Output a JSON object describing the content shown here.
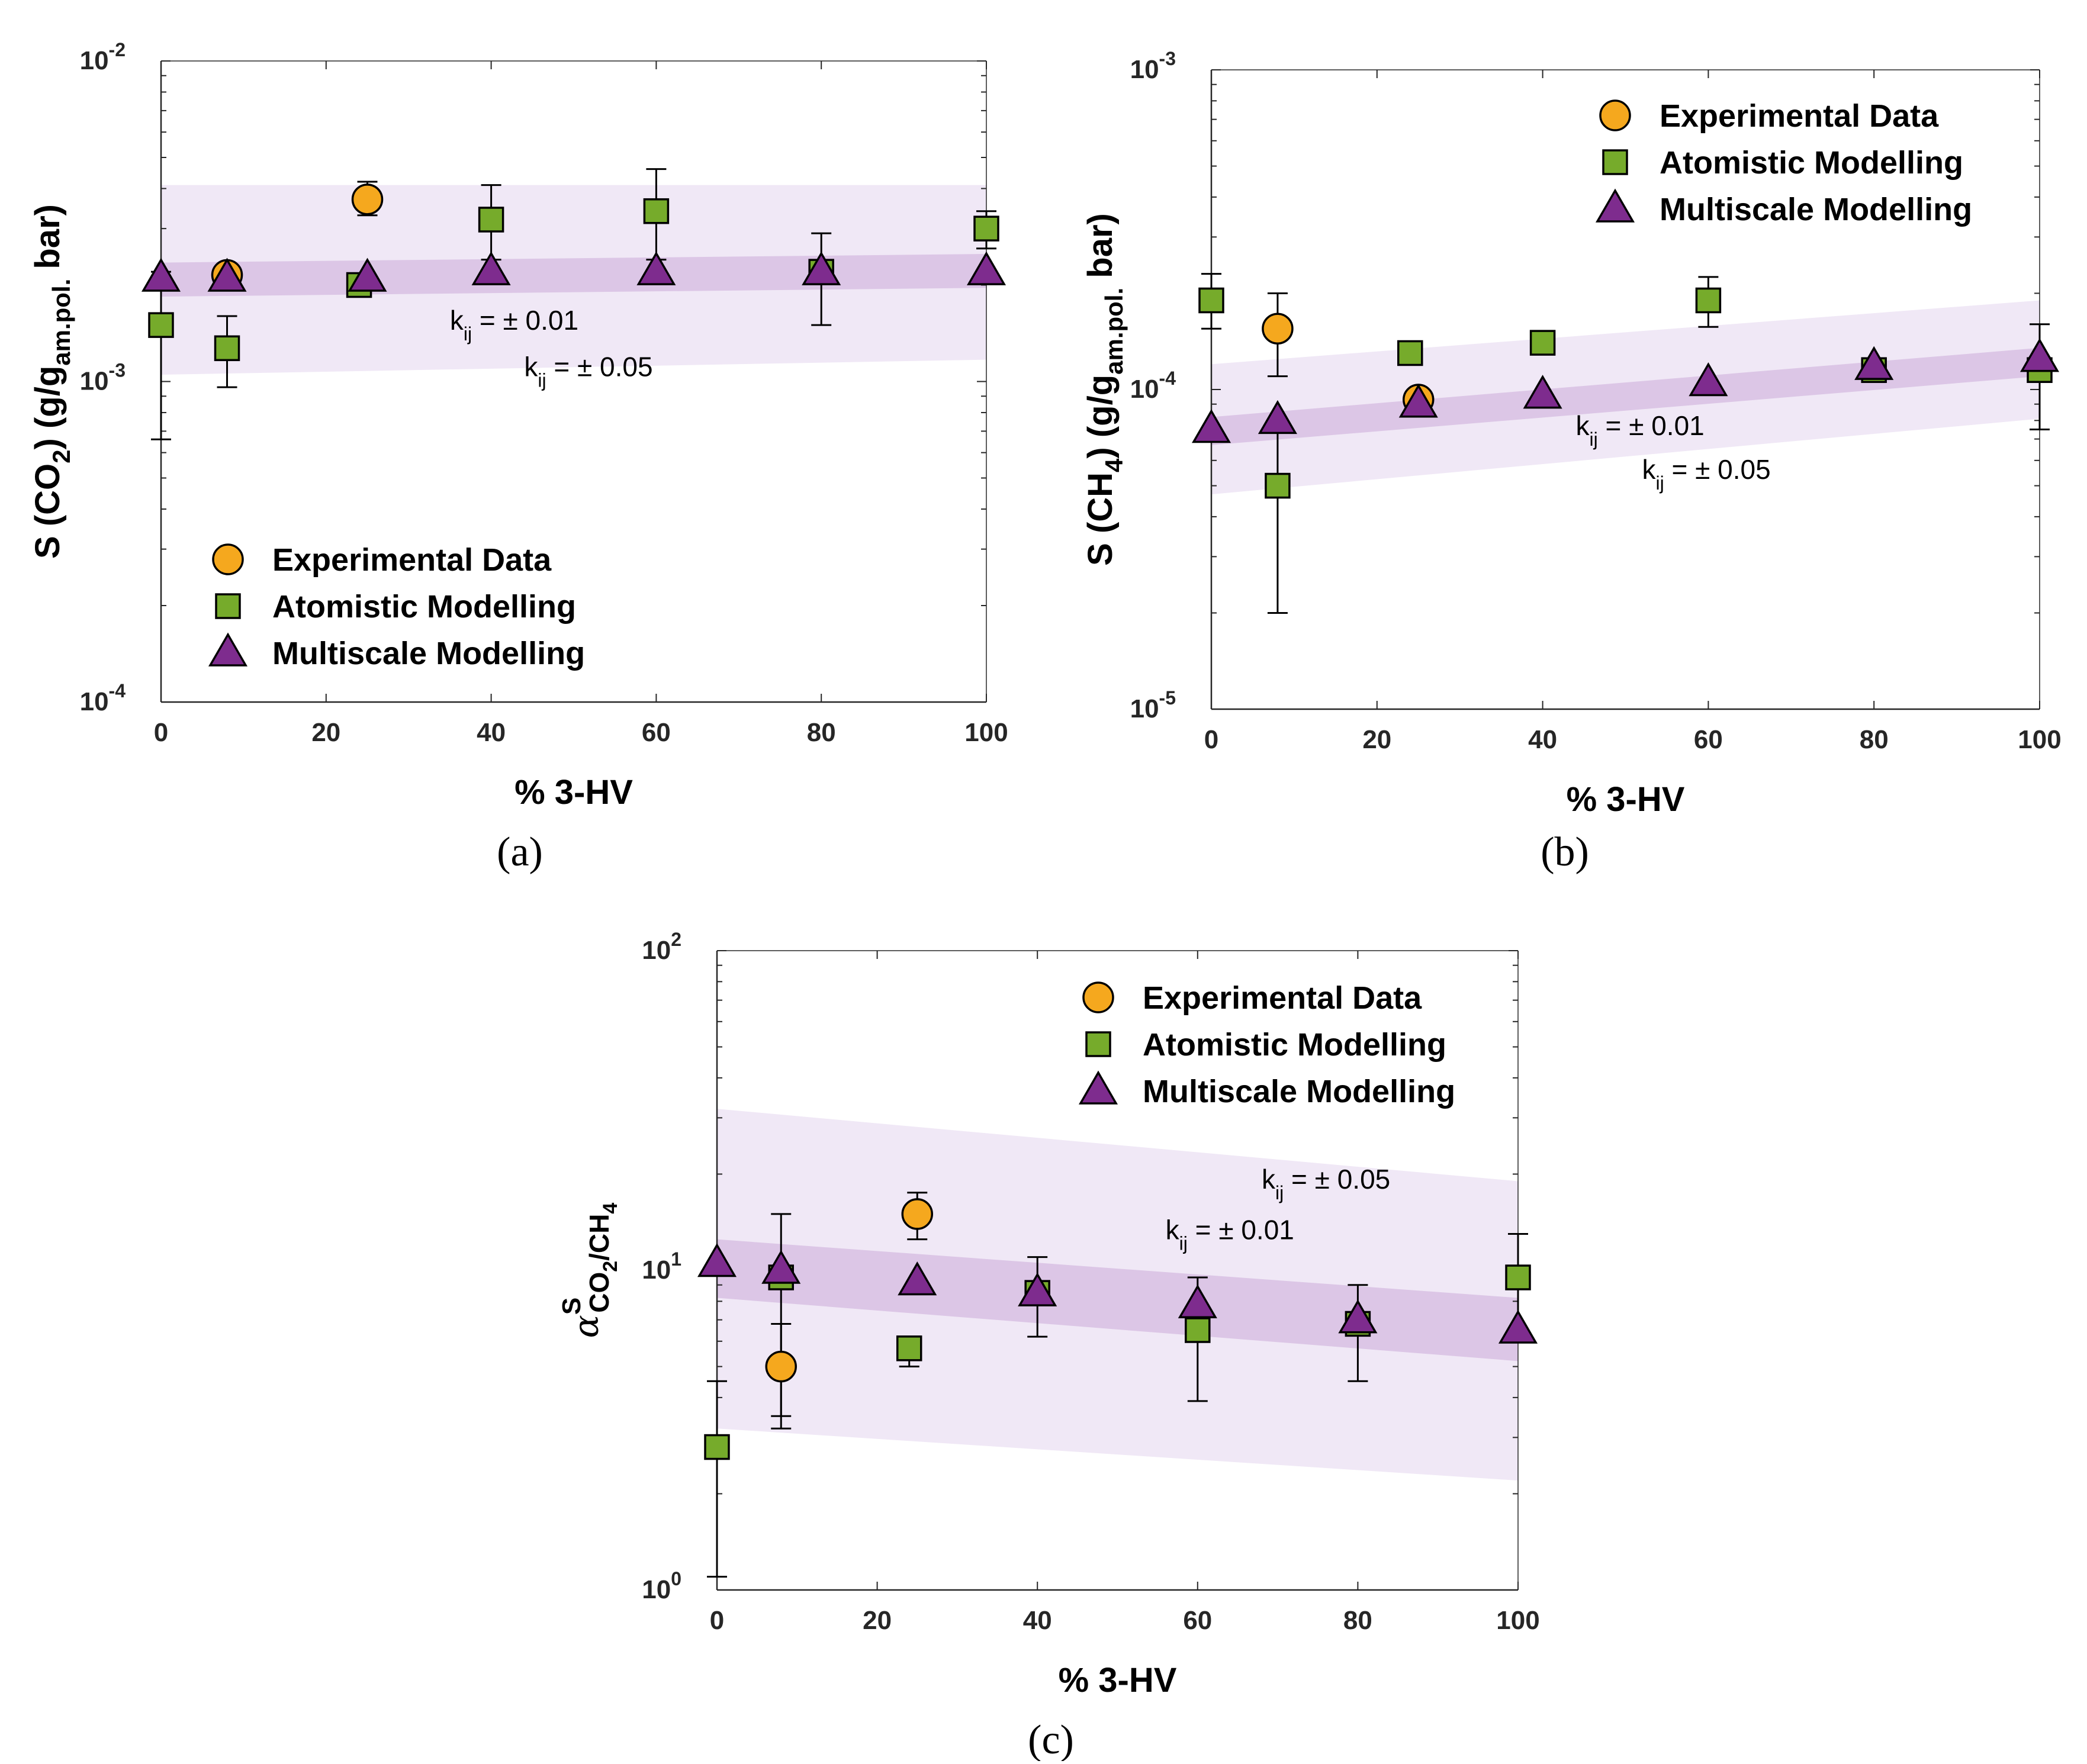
{
  "colors": {
    "experimental": "#f5a81e",
    "atomistic": "#76ab2b",
    "multiscale": "#7e2c8e",
    "band_inner": "#dcc6e6",
    "band_outer": "#f0e8f6"
  },
  "legend": {
    "experimental": "Experimental Data",
    "atomistic": "Atomistic Modelling",
    "multiscale": "Multiscale Modelling"
  },
  "chart_data": [
    {
      "type": "scatter",
      "panel_label": "(a)",
      "xlabel": "% 3-HV",
      "ylabel": "S (CO2) (g/gam.pol. bar)",
      "y_scale": "log",
      "xlim": [
        0,
        100
      ],
      "ylim": [
        0.0001,
        0.01
      ],
      "xticks": [
        0,
        20,
        40,
        60,
        80,
        100
      ],
      "yticks": [
        {
          "value": 0.0001,
          "base": "10",
          "exp": "-4"
        },
        {
          "value": 0.001,
          "base": "10",
          "exp": "-3"
        },
        {
          "value": 0.01,
          "base": "10",
          "exp": "-2"
        }
      ],
      "legend_position": "bottom-left",
      "annotations": [
        {
          "text": "k",
          "sub": "ij",
          "rest": " = ± 0.01",
          "x": 35,
          "y": 0.00145
        },
        {
          "text": "k",
          "sub": "ij",
          "rest": " = ± 0.05",
          "x": 44,
          "y": 0.00104
        }
      ],
      "bands": [
        {
          "name": "k_ij = ± 0.05",
          "x": [
            0,
            100
          ],
          "lower": [
            0.00105,
            0.00117
          ],
          "upper": [
            0.0041,
            0.0041
          ]
        },
        {
          "name": "k_ij = ± 0.01",
          "x": [
            0,
            100
          ],
          "lower": [
            0.00184,
            0.00196
          ],
          "upper": [
            0.00235,
            0.0025
          ]
        }
      ],
      "series": [
        {
          "name": "Experimental Data",
          "marker": "circle",
          "points": [
            {
              "x": 8,
              "y": 0.00215
            },
            {
              "x": 25,
              "y": 0.0037,
              "err": [
                0.0033,
                0.0042
              ]
            }
          ]
        },
        {
          "name": "Atomistic Modelling",
          "marker": "square",
          "points": [
            {
              "x": 0,
              "y": 0.0015,
              "err": [
                0.00066,
                0.0022
              ]
            },
            {
              "x": 8,
              "y": 0.00127,
              "err": [
                0.00096,
                0.0016
              ]
            },
            {
              "x": 24,
              "y": 0.002
            },
            {
              "x": 40,
              "y": 0.0032,
              "err": [
                0.0024,
                0.0041
              ]
            },
            {
              "x": 60,
              "y": 0.0034,
              "err": [
                0.0024,
                0.0046
              ]
            },
            {
              "x": 80,
              "y": 0.0022,
              "err": [
                0.0015,
                0.0029
              ]
            },
            {
              "x": 100,
              "y": 0.003,
              "err": [
                0.0026,
                0.0034
              ]
            }
          ]
        },
        {
          "name": "Multiscale Modelling",
          "marker": "triangle",
          "points": [
            {
              "x": 0,
              "y": 0.0021
            },
            {
              "x": 8,
              "y": 0.0021
            },
            {
              "x": 25,
              "y": 0.0021
            },
            {
              "x": 40,
              "y": 0.0022
            },
            {
              "x": 60,
              "y": 0.0022
            },
            {
              "x": 80,
              "y": 0.0022
            },
            {
              "x": 100,
              "y": 0.0022
            }
          ]
        }
      ]
    },
    {
      "type": "scatter",
      "panel_label": "(b)",
      "xlabel": "% 3-HV",
      "ylabel": "S (CH4) (g/gam.pol. bar)",
      "y_scale": "log",
      "xlim": [
        0,
        100
      ],
      "ylim": [
        1e-05,
        0.001
      ],
      "xticks": [
        0,
        20,
        40,
        60,
        80,
        100
      ],
      "yticks": [
        {
          "value": 1e-05,
          "base": "10",
          "exp": "-5"
        },
        {
          "value": 0.0001,
          "base": "10",
          "exp": "-4"
        },
        {
          "value": 0.001,
          "base": "10",
          "exp": "-3"
        }
      ],
      "legend_position": "top-right",
      "annotations": [
        {
          "text": "k",
          "sub": "ij",
          "rest": " = ± 0.01",
          "x": 44,
          "y": 7.2e-05
        },
        {
          "text": "k",
          "sub": "ij",
          "rest": " = ± 0.05",
          "x": 52,
          "y": 5.25e-05
        }
      ],
      "bands": [
        {
          "name": "k_ij = ± 0.05",
          "x": [
            0,
            100
          ],
          "lower": [
            4.7e-05,
            8.1e-05
          ],
          "upper": [
            0.00012,
            0.00019
          ]
        },
        {
          "name": "k_ij = ± 0.01",
          "x": [
            0,
            100
          ],
          "lower": [
            6.7e-05,
            0.00011
          ],
          "upper": [
            8.2e-05,
            0.000135
          ]
        }
      ],
      "series": [
        {
          "name": "Experimental Data",
          "marker": "circle",
          "points": [
            {
              "x": 8,
              "y": 0.000155,
              "err": [
                0.00011,
                0.0002
              ]
            },
            {
              "x": 25,
              "y": 9.3e-05,
              "err": [
                8.6e-05,
                0.0001
              ]
            }
          ]
        },
        {
          "name": "Atomistic Modelling",
          "marker": "square",
          "points": [
            {
              "x": 0,
              "y": 0.00019,
              "err": [
                0.000155,
                0.00023
              ]
            },
            {
              "x": 8,
              "y": 5e-05,
              "err": [
                2e-05,
                8e-05
              ]
            },
            {
              "x": 24,
              "y": 0.00013
            },
            {
              "x": 40,
              "y": 0.00014,
              "err": [
                0.00013,
                0.00015
              ]
            },
            {
              "x": 60,
              "y": 0.00019,
              "err": [
                0.000157,
                0.000225
              ]
            },
            {
              "x": 80,
              "y": 0.000115
            },
            {
              "x": 100,
              "y": 0.000115,
              "err": [
                7.5e-05,
                0.00016
              ]
            }
          ]
        },
        {
          "name": "Multiscale Modelling",
          "marker": "triangle",
          "points": [
            {
              "x": 0,
              "y": 7.5e-05
            },
            {
              "x": 8,
              "y": 8e-05
            },
            {
              "x": 25,
              "y": 9e-05
            },
            {
              "x": 40,
              "y": 9.6e-05
            },
            {
              "x": 60,
              "y": 0.000105
            },
            {
              "x": 80,
              "y": 0.000118
            },
            {
              "x": 100,
              "y": 0.000125
            }
          ]
        }
      ]
    },
    {
      "type": "scatter",
      "panel_label": "(c)",
      "xlabel": "% 3-HV",
      "ylabel": "αSCO2/CH4",
      "y_scale": "log",
      "xlim": [
        0,
        100
      ],
      "ylim": [
        1,
        100
      ],
      "xticks": [
        0,
        20,
        40,
        60,
        80,
        100
      ],
      "yticks": [
        {
          "value": 1,
          "base": "10",
          "exp": "0"
        },
        {
          "value": 10,
          "base": "10",
          "exp": "1"
        },
        {
          "value": 100,
          "base": "10",
          "exp": "2"
        }
      ],
      "legend_position": "top-right",
      "annotations": [
        {
          "text": "k",
          "sub": "ij",
          "rest": " = ± 0.05",
          "x": 68,
          "y": 18
        },
        {
          "text": "k",
          "sub": "ij",
          "rest": " = ± 0.01",
          "x": 56,
          "y": 12.5
        }
      ],
      "bands": [
        {
          "name": "k_ij = ± 0.05",
          "x": [
            0,
            100
          ],
          "lower": [
            3.2,
            2.2
          ],
          "upper": [
            32,
            19
          ]
        },
        {
          "name": "k_ij = ± 0.01",
          "x": [
            0,
            100
          ],
          "lower": [
            8.2,
            5.2
          ],
          "upper": [
            12.5,
            8.2
          ]
        }
      ],
      "series": [
        {
          "name": "Experimental Data",
          "marker": "circle",
          "points": [
            {
              "x": 8,
              "y": 5,
              "err": [
                3.5,
                6.8
              ]
            },
            {
              "x": 25,
              "y": 15,
              "err": [
                12.5,
                17.5
              ]
            }
          ]
        },
        {
          "name": "Atomistic Modelling",
          "marker": "square",
          "points": [
            {
              "x": 0,
              "y": 2.8,
              "err": [
                1.1,
                4.5
              ]
            },
            {
              "x": 8,
              "y": 9.5,
              "err": [
                3.2,
                15
              ]
            },
            {
              "x": 24,
              "y": 5.7,
              "err": [
                5,
                6
              ]
            },
            {
              "x": 40,
              "y": 8.5,
              "err": [
                6.2,
                11
              ]
            },
            {
              "x": 60,
              "y": 6.5,
              "err": [
                3.9,
                9.5
              ]
            },
            {
              "x": 80,
              "y": 6.8,
              "err": [
                4.5,
                9
              ]
            },
            {
              "x": 100,
              "y": 9.5,
              "err": [
                6.5,
                13
              ]
            }
          ]
        },
        {
          "name": "Multiscale Modelling",
          "marker": "triangle",
          "points": [
            {
              "x": 0,
              "y": 10.5
            },
            {
              "x": 8,
              "y": 10
            },
            {
              "x": 25,
              "y": 9.2
            },
            {
              "x": 40,
              "y": 8.5
            },
            {
              "x": 60,
              "y": 7.8
            },
            {
              "x": 80,
              "y": 7
            },
            {
              "x": 100,
              "y": 6.5
            }
          ]
        }
      ]
    }
  ]
}
